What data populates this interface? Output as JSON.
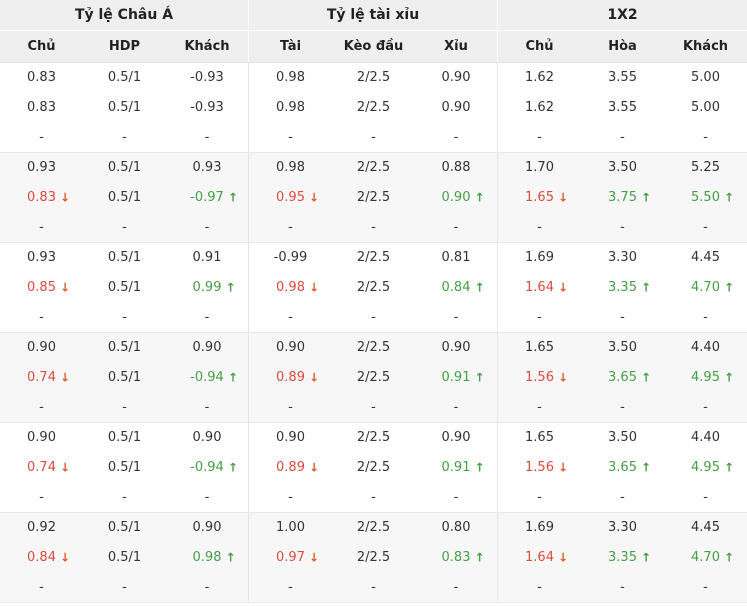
{
  "header": {
    "groups": [
      {
        "label": "Tỷ lệ Châu Á",
        "cols": [
          "Chủ",
          "HDP",
          "Khách"
        ]
      },
      {
        "label": "Tỷ lệ tài xỉu",
        "cols": [
          "Tài",
          "Kèo đầu",
          "Xỉu"
        ]
      },
      {
        "label": "1X2",
        "cols": [
          "Chủ",
          "Hòa",
          "Khách"
        ]
      }
    ]
  },
  "icons": {
    "down": "↓",
    "up": "↑"
  },
  "colors": {
    "header_bg": "#efefef",
    "shade_bg": "#f7f7f7",
    "normal_text": "#333333",
    "down_text": "#dc4b3e",
    "up_text": "#44a044",
    "arrow_down": "#e05c2a",
    "arrow_up": "#44a044"
  },
  "groups": [
    {
      "shade": false,
      "rows": [
        [
          [
            "0.83",
            "n"
          ],
          [
            "0.5/1",
            "n"
          ],
          [
            "-0.93",
            "n"
          ],
          [
            "0.98",
            "n"
          ],
          [
            "2/2.5",
            "n"
          ],
          [
            "0.90",
            "n"
          ],
          [
            "1.62",
            "n"
          ],
          [
            "3.55",
            "n"
          ],
          [
            "5.00",
            "n"
          ]
        ],
        [
          [
            "0.83",
            "n"
          ],
          [
            "0.5/1",
            "n"
          ],
          [
            "-0.93",
            "n"
          ],
          [
            "0.98",
            "n"
          ],
          [
            "2/2.5",
            "n"
          ],
          [
            "0.90",
            "n"
          ],
          [
            "1.62",
            "n"
          ],
          [
            "3.55",
            "n"
          ],
          [
            "5.00",
            "n"
          ]
        ],
        [
          [
            "-",
            "n"
          ],
          [
            "-",
            "n"
          ],
          [
            "-",
            "n"
          ],
          [
            "-",
            "n"
          ],
          [
            "-",
            "n"
          ],
          [
            "-",
            "n"
          ],
          [
            "-",
            "n"
          ],
          [
            "-",
            "n"
          ],
          [
            "-",
            "n"
          ]
        ]
      ]
    },
    {
      "shade": true,
      "rows": [
        [
          [
            "0.93",
            "n"
          ],
          [
            "0.5/1",
            "n"
          ],
          [
            "0.93",
            "n"
          ],
          [
            "0.98",
            "n"
          ],
          [
            "2/2.5",
            "n"
          ],
          [
            "0.88",
            "n"
          ],
          [
            "1.70",
            "n"
          ],
          [
            "3.50",
            "n"
          ],
          [
            "5.25",
            "n"
          ]
        ],
        [
          [
            "0.83",
            "d"
          ],
          [
            "0.5/1",
            "n"
          ],
          [
            "-0.97",
            "u"
          ],
          [
            "0.95",
            "d"
          ],
          [
            "2/2.5",
            "n"
          ],
          [
            "0.90",
            "u"
          ],
          [
            "1.65",
            "d"
          ],
          [
            "3.75",
            "u"
          ],
          [
            "5.50",
            "u"
          ]
        ],
        [
          [
            "-",
            "n"
          ],
          [
            "-",
            "n"
          ],
          [
            "-",
            "n"
          ],
          [
            "-",
            "n"
          ],
          [
            "-",
            "n"
          ],
          [
            "-",
            "n"
          ],
          [
            "-",
            "n"
          ],
          [
            "-",
            "n"
          ],
          [
            "-",
            "n"
          ]
        ]
      ]
    },
    {
      "shade": false,
      "rows": [
        [
          [
            "0.93",
            "n"
          ],
          [
            "0.5/1",
            "n"
          ],
          [
            "0.91",
            "n"
          ],
          [
            "-0.99",
            "n"
          ],
          [
            "2/2.5",
            "n"
          ],
          [
            "0.81",
            "n"
          ],
          [
            "1.69",
            "n"
          ],
          [
            "3.30",
            "n"
          ],
          [
            "4.45",
            "n"
          ]
        ],
        [
          [
            "0.85",
            "d"
          ],
          [
            "0.5/1",
            "n"
          ],
          [
            "0.99",
            "u"
          ],
          [
            "0.98",
            "d"
          ],
          [
            "2/2.5",
            "n"
          ],
          [
            "0.84",
            "u"
          ],
          [
            "1.64",
            "d"
          ],
          [
            "3.35",
            "u"
          ],
          [
            "4.70",
            "u"
          ]
        ],
        [
          [
            "-",
            "n"
          ],
          [
            "-",
            "n"
          ],
          [
            "-",
            "n"
          ],
          [
            "-",
            "n"
          ],
          [
            "-",
            "n"
          ],
          [
            "-",
            "n"
          ],
          [
            "-",
            "n"
          ],
          [
            "-",
            "n"
          ],
          [
            "-",
            "n"
          ]
        ]
      ]
    },
    {
      "shade": true,
      "rows": [
        [
          [
            "0.90",
            "n"
          ],
          [
            "0.5/1",
            "n"
          ],
          [
            "0.90",
            "n"
          ],
          [
            "0.90",
            "n"
          ],
          [
            "2/2.5",
            "n"
          ],
          [
            "0.90",
            "n"
          ],
          [
            "1.65",
            "n"
          ],
          [
            "3.50",
            "n"
          ],
          [
            "4.40",
            "n"
          ]
        ],
        [
          [
            "0.74",
            "d"
          ],
          [
            "0.5/1",
            "n"
          ],
          [
            "-0.94",
            "u"
          ],
          [
            "0.89",
            "d"
          ],
          [
            "2/2.5",
            "n"
          ],
          [
            "0.91",
            "u"
          ],
          [
            "1.56",
            "d"
          ],
          [
            "3.65",
            "u"
          ],
          [
            "4.95",
            "u"
          ]
        ],
        [
          [
            "-",
            "n"
          ],
          [
            "-",
            "n"
          ],
          [
            "-",
            "n"
          ],
          [
            "-",
            "n"
          ],
          [
            "-",
            "n"
          ],
          [
            "-",
            "n"
          ],
          [
            "-",
            "n"
          ],
          [
            "-",
            "n"
          ],
          [
            "-",
            "n"
          ]
        ]
      ]
    },
    {
      "shade": false,
      "rows": [
        [
          [
            "0.90",
            "n"
          ],
          [
            "0.5/1",
            "n"
          ],
          [
            "0.90",
            "n"
          ],
          [
            "0.90",
            "n"
          ],
          [
            "2/2.5",
            "n"
          ],
          [
            "0.90",
            "n"
          ],
          [
            "1.65",
            "n"
          ],
          [
            "3.50",
            "n"
          ],
          [
            "4.40",
            "n"
          ]
        ],
        [
          [
            "0.74",
            "d"
          ],
          [
            "0.5/1",
            "n"
          ],
          [
            "-0.94",
            "u"
          ],
          [
            "0.89",
            "d"
          ],
          [
            "2/2.5",
            "n"
          ],
          [
            "0.91",
            "u"
          ],
          [
            "1.56",
            "d"
          ],
          [
            "3.65",
            "u"
          ],
          [
            "4.95",
            "u"
          ]
        ],
        [
          [
            "-",
            "n"
          ],
          [
            "-",
            "n"
          ],
          [
            "-",
            "n"
          ],
          [
            "-",
            "n"
          ],
          [
            "-",
            "n"
          ],
          [
            "-",
            "n"
          ],
          [
            "-",
            "n"
          ],
          [
            "-",
            "n"
          ],
          [
            "-",
            "n"
          ]
        ]
      ]
    },
    {
      "shade": true,
      "rows": [
        [
          [
            "0.92",
            "n"
          ],
          [
            "0.5/1",
            "n"
          ],
          [
            "0.90",
            "n"
          ],
          [
            "1.00",
            "n"
          ],
          [
            "2/2.5",
            "n"
          ],
          [
            "0.80",
            "n"
          ],
          [
            "1.69",
            "n"
          ],
          [
            "3.30",
            "n"
          ],
          [
            "4.45",
            "n"
          ]
        ],
        [
          [
            "0.84",
            "d"
          ],
          [
            "0.5/1",
            "n"
          ],
          [
            "0.98",
            "u"
          ],
          [
            "0.97",
            "d"
          ],
          [
            "2/2.5",
            "n"
          ],
          [
            "0.83",
            "u"
          ],
          [
            "1.64",
            "d"
          ],
          [
            "3.35",
            "u"
          ],
          [
            "4.70",
            "u"
          ]
        ],
        [
          [
            "-",
            "n"
          ],
          [
            "-",
            "n"
          ],
          [
            "-",
            "n"
          ],
          [
            "-",
            "n"
          ],
          [
            "-",
            "n"
          ],
          [
            "-",
            "n"
          ],
          [
            "-",
            "n"
          ],
          [
            "-",
            "n"
          ],
          [
            "-",
            "n"
          ]
        ]
      ]
    }
  ]
}
